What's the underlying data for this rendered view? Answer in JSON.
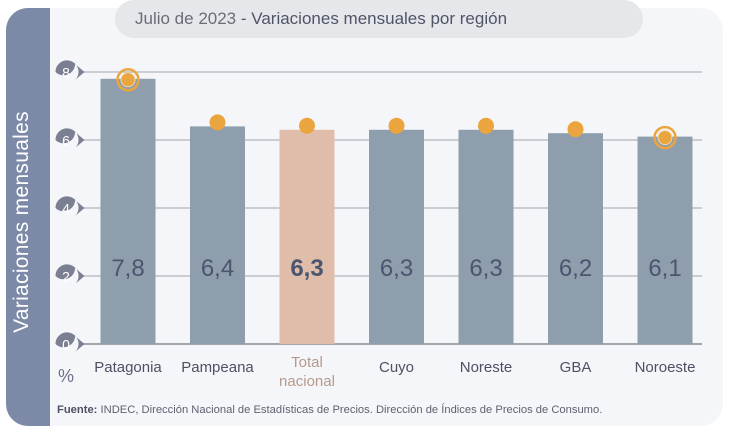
{
  "header": {
    "date": "Julio de 2023",
    "separator": " - ",
    "title": "Variaciones mensuales por región"
  },
  "footer": {
    "source_label": "Fuente:",
    "source_text": " INDEC, Dirección Nacional de Estadísticas de Precios. Dirección de Índices de Precios de Consumo."
  },
  "colors": {
    "bar": "#8e9eac",
    "bar_highlight": "#e0bcaa",
    "marker": "#eba53f",
    "stripe": "#7c8aa7",
    "tick_badge": "#7b7f92",
    "value_label": "#4a5670",
    "highlight_label": "#b79a8c"
  },
  "chart_data": {
    "type": "bar",
    "title": "Julio de 2023 - Variaciones mensuales por región",
    "xlabel": "",
    "ylabel": "Variaciones  mensuales",
    "unit_label": "%",
    "categories": [
      "Patagonia",
      "Pampeana",
      "Total nacional",
      "Cuyo",
      "Noreste",
      "GBA",
      "Noroeste"
    ],
    "category_lines": [
      [
        "Patagonia"
      ],
      [
        "Pampeana"
      ],
      [
        "Total",
        "nacional"
      ],
      [
        "Cuyo"
      ],
      [
        "Noreste"
      ],
      [
        "GBA"
      ],
      [
        "Noroeste"
      ]
    ],
    "values": [
      7.8,
      6.4,
      6.3,
      6.3,
      6.3,
      6.2,
      6.1
    ],
    "value_labels": [
      "7,8",
      "6,4",
      "6,3",
      "6,3",
      "6,3",
      "6,2",
      "6,1"
    ],
    "highlight_index": 2,
    "max_index": 0,
    "min_index": 6,
    "yticks": [
      0,
      2,
      4,
      6,
      8
    ],
    "ylim": [
      0,
      8
    ],
    "grid": true,
    "legend": "none"
  }
}
